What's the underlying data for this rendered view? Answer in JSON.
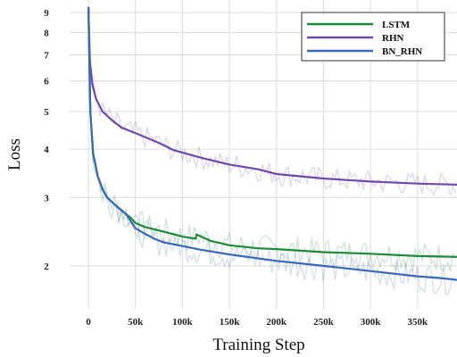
{
  "chart_data": {
    "type": "line",
    "title": "",
    "xlabel": "Training Step",
    "ylabel": "Loss",
    "y_scale": "log",
    "xlim": [
      -20000,
      392000
    ],
    "ylim": [
      1.55,
      9.7
    ],
    "grid": true,
    "legend_position": "top-right",
    "x_ticks": [
      {
        "value": 0,
        "label": "0"
      },
      {
        "value": 50000,
        "label": "50k"
      },
      {
        "value": 100000,
        "label": "100k"
      },
      {
        "value": 150000,
        "label": "150k"
      },
      {
        "value": 200000,
        "label": "200k"
      },
      {
        "value": 250000,
        "label": "250k"
      },
      {
        "value": 300000,
        "label": "300k"
      },
      {
        "value": 350000,
        "label": "350k"
      }
    ],
    "y_ticks": [
      {
        "value": 2,
        "label": "2"
      },
      {
        "value": 3,
        "label": "3"
      },
      {
        "value": 4,
        "label": "4"
      },
      {
        "value": 5,
        "label": "5"
      },
      {
        "value": 6,
        "label": "6"
      },
      {
        "value": 7,
        "label": "7"
      },
      {
        "value": 8,
        "label": "8"
      },
      {
        "value": 9,
        "label": "9"
      }
    ],
    "series": [
      {
        "name": "LSTM",
        "color": "#1f8a3c",
        "x": [
          0,
          2000,
          5000,
          10000,
          15000,
          20000,
          30000,
          40000,
          45000,
          50000,
          60000,
          80000,
          100000,
          114000,
          115000,
          130000,
          150000,
          180000,
          200000,
          250000,
          300000,
          350000,
          392000
        ],
        "y": [
          9.3,
          5.0,
          3.9,
          3.4,
          3.15,
          3.0,
          2.85,
          2.72,
          2.66,
          2.58,
          2.52,
          2.45,
          2.38,
          2.35,
          2.41,
          2.32,
          2.26,
          2.22,
          2.21,
          2.17,
          2.15,
          2.12,
          2.11
        ]
      },
      {
        "name": "RHN",
        "color": "#6f4aa8",
        "x": [
          0,
          1500,
          4000,
          8000,
          15000,
          25000,
          35000,
          50000,
          60000,
          70000,
          80000,
          90000,
          100000,
          120000,
          150000,
          180000,
          200000,
          250000,
          300000,
          350000,
          392000
        ],
        "y": [
          9.3,
          6.8,
          5.9,
          5.4,
          5.0,
          4.75,
          4.55,
          4.4,
          4.3,
          4.2,
          4.1,
          3.98,
          3.92,
          3.8,
          3.65,
          3.55,
          3.45,
          3.36,
          3.3,
          3.26,
          3.24
        ]
      },
      {
        "name": "BN_RHN",
        "color": "#3a68b8",
        "x": [
          0,
          2000,
          5000,
          10000,
          15000,
          20000,
          30000,
          40000,
          50000,
          60000,
          70000,
          80000,
          100000,
          120000,
          150000,
          200000,
          250000,
          300000,
          350000,
          375000,
          392000
        ],
        "y": [
          9.3,
          5.0,
          3.9,
          3.4,
          3.15,
          3.0,
          2.85,
          2.72,
          2.5,
          2.42,
          2.35,
          2.3,
          2.25,
          2.2,
          2.14,
          2.06,
          2.0,
          1.94,
          1.88,
          1.86,
          1.84
        ]
      }
    ]
  }
}
